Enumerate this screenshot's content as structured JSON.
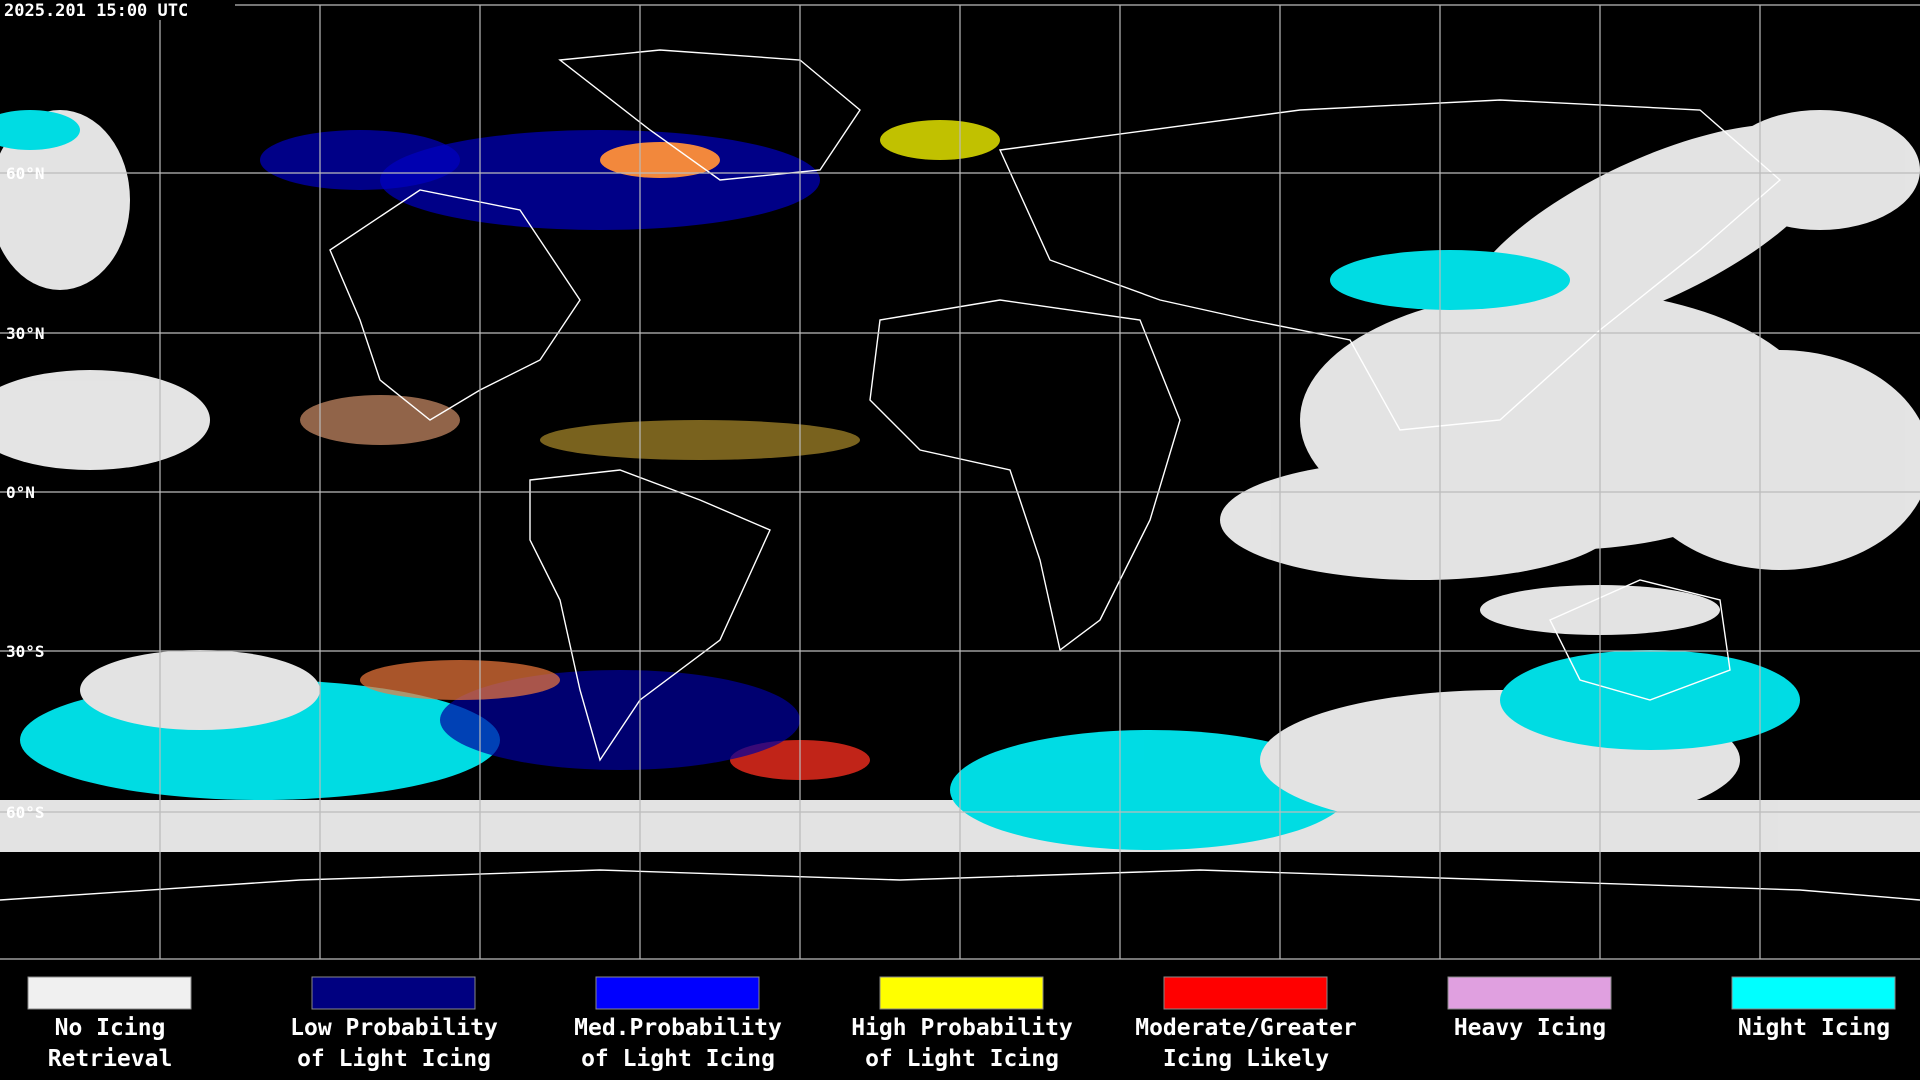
{
  "header": {
    "timestamp": "2025.201 15:00 UTC"
  },
  "lat_labels": [
    "60°N",
    "30°N",
    "0°N",
    "30°S",
    "60°S"
  ],
  "legend": [
    {
      "lines": [
        "No Icing",
        "Retrieval"
      ],
      "color": "#f0f0f0"
    },
    {
      "lines": [
        "Low Probability",
        "of Light Icing"
      ],
      "color": "#000080"
    },
    {
      "lines": [
        "Med.Probability",
        "of Light Icing"
      ],
      "color": "#0000ff"
    },
    {
      "lines": [
        "High Probability",
        "of Light Icing"
      ],
      "color": "#ffff00"
    },
    {
      "lines": [
        "Moderate/Greater",
        "Icing Likely"
      ],
      "color": "#ff0000"
    },
    {
      "lines": [
        "Heavy Icing"
      ],
      "color": "#e0a0e0"
    },
    {
      "lines": [
        "Night Icing"
      ],
      "color": "#00ffff"
    }
  ]
}
